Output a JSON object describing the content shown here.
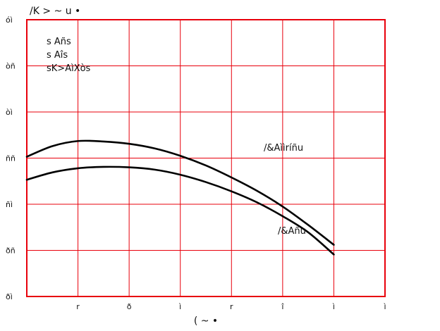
{
  "chart_data": {
    "type": "line",
    "title": "",
    "ylabel": "/K > ~ u •",
    "xlabel": "( ~ •",
    "x_ticks": [
      "r",
      "ð",
      "ì",
      "r",
      "î",
      "ì",
      "ì"
    ],
    "y_ticks": [
      "óì",
      "òñ",
      "òì",
      "ññ",
      "ñì",
      "ðñ",
      "ðì"
    ],
    "legend_lines": [
      "s Añs",
      "s Aîs",
      "sK>AìXòs"
    ],
    "grid": true,
    "grid_color": "#e8000b",
    "line_color": "#000000",
    "xlim": [
      0,
      7
    ],
    "ylim": [
      0,
      6
    ],
    "series": [
      {
        "name": "/&Aììríñu",
        "x": [
          0,
          0.5,
          1,
          1.5,
          2,
          2.5,
          3,
          3.5,
          4,
          4.5,
          5,
          5.5,
          6
        ],
        "y": [
          3.03,
          3.26,
          3.37,
          3.36,
          3.31,
          3.21,
          3.05,
          2.84,
          2.58,
          2.29,
          1.95,
          1.55,
          1.12
        ]
      },
      {
        "name": "/&Añu",
        "x": [
          0,
          0.5,
          1,
          1.5,
          2,
          2.5,
          3,
          3.5,
          4,
          4.5,
          5,
          5.5,
          6
        ],
        "y": [
          2.53,
          2.69,
          2.78,
          2.81,
          2.8,
          2.75,
          2.64,
          2.48,
          2.28,
          2.04,
          1.74,
          1.39,
          0.91
        ]
      }
    ]
  }
}
